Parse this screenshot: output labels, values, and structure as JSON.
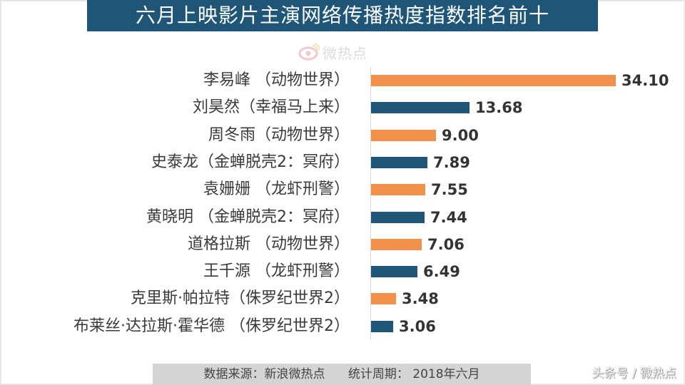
{
  "title": "六月上映影片主演网络传播热度指数排名前十",
  "watermark": {
    "icon": "weibo-eye-logo-icon",
    "text": "微热点"
  },
  "colors": {
    "orange": "#f0904a",
    "blue": "#1f5678",
    "title_bg": "#1f5678",
    "footer_bg": "#d4d4d4"
  },
  "footer": {
    "source": "数据来源：新浪微热点      统计周期： 2018年六月"
  },
  "credit": "头条号 / 微热点",
  "chart_data": {
    "type": "bar",
    "orientation": "horizontal",
    "title": "六月上映影片主演网络传播热度指数排名前十",
    "xlabel": "",
    "ylabel": "",
    "xlim": [
      0,
      34.1
    ],
    "grid": false,
    "legend": null,
    "categories": [
      "李易峰 （动物世界）",
      "刘昊然（幸福马上来）",
      "周冬雨（动物世界）",
      "史泰龙（金蝉脱壳2：冥府）",
      "袁姗姗 （龙虾刑警）",
      "黄晓明 （金蝉脱壳2：冥府）",
      "道格拉斯 （动物世界）",
      "王千源 （龙虾刑警）",
      "克里斯·帕拉特（侏罗纪世界2）",
      "布莱丝·达拉斯·霍华德 （侏罗纪世界2）"
    ],
    "values": [
      34.1,
      13.68,
      9.0,
      7.89,
      7.55,
      7.44,
      7.06,
      6.49,
      3.48,
      3.06
    ],
    "value_labels": [
      "34.10",
      "13.68",
      "9.00",
      "7.89",
      "7.55",
      "7.44",
      "7.06",
      "6.49",
      "3.48",
      "3.06"
    ],
    "bar_colors": [
      "#f0904a",
      "#1f5678",
      "#f0904a",
      "#1f5678",
      "#f0904a",
      "#1f5678",
      "#f0904a",
      "#1f5678",
      "#f0904a",
      "#1f5678"
    ]
  }
}
